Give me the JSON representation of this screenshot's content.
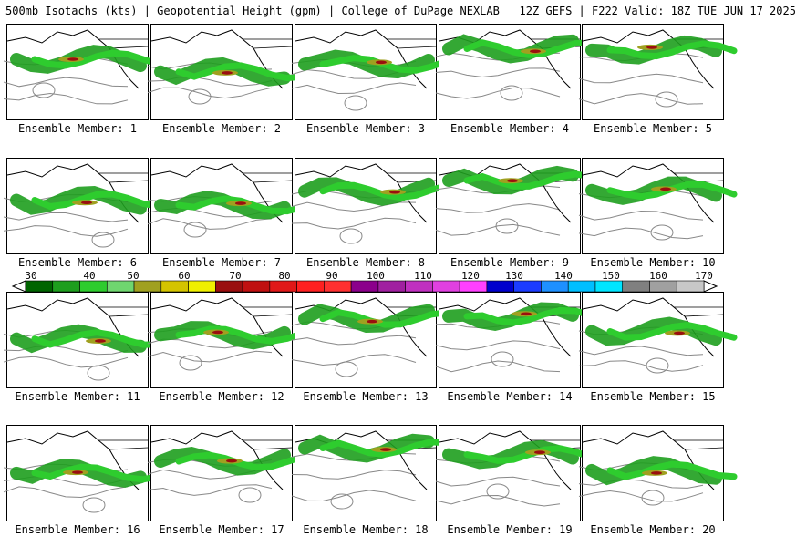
{
  "header": {
    "title": "500mb Isotachs (kts) | Geopotential Height (gpm) | College of DuPage NEXLAB   12Z GEFS | F222 Valid: 18Z TUE JUN 17 2025"
  },
  "members": [
    {
      "label": "Ensemble Member: 1"
    },
    {
      "label": "Ensemble Member: 2"
    },
    {
      "label": "Ensemble Member: 3"
    },
    {
      "label": "Ensemble Member: 4"
    },
    {
      "label": "Ensemble Member: 5"
    },
    {
      "label": "Ensemble Member: 6"
    },
    {
      "label": "Ensemble Member: 7"
    },
    {
      "label": "Ensemble Member: 8"
    },
    {
      "label": "Ensemble Member: 9"
    },
    {
      "label": "Ensemble Member: 10"
    },
    {
      "label": "Ensemble Member: 11"
    },
    {
      "label": "Ensemble Member: 12"
    },
    {
      "label": "Ensemble Member: 13"
    },
    {
      "label": "Ensemble Member: 14"
    },
    {
      "label": "Ensemble Member: 15"
    },
    {
      "label": "Ensemble Member: 16"
    },
    {
      "label": "Ensemble Member: 17"
    },
    {
      "label": "Ensemble Member: 18"
    },
    {
      "label": "Ensemble Member: 19"
    },
    {
      "label": "Ensemble Member: 20"
    }
  ],
  "colorbar": {
    "labels": [
      "30",
      "40",
      "50",
      "60",
      "70",
      "80",
      "90",
      "100",
      "110",
      "120",
      "130",
      "140",
      "150",
      "160",
      "170"
    ],
    "colors": [
      "#006400",
      "#1e9e1e",
      "#2ecc2e",
      "#6fd66f",
      "#a0a020",
      "#d4c400",
      "#f0f000",
      "#9a0f0f",
      "#c01010",
      "#e01818",
      "#ff2020",
      "#ff3030",
      "#8b008b",
      "#a020a0",
      "#c030c0",
      "#e040e0",
      "#ff40ff",
      "#0000cd",
      "#1c3cff",
      "#1e90ff",
      "#00bfff",
      "#00e5ff",
      "#808080",
      "#a0a0a0",
      "#c8c8c8"
    ]
  }
}
